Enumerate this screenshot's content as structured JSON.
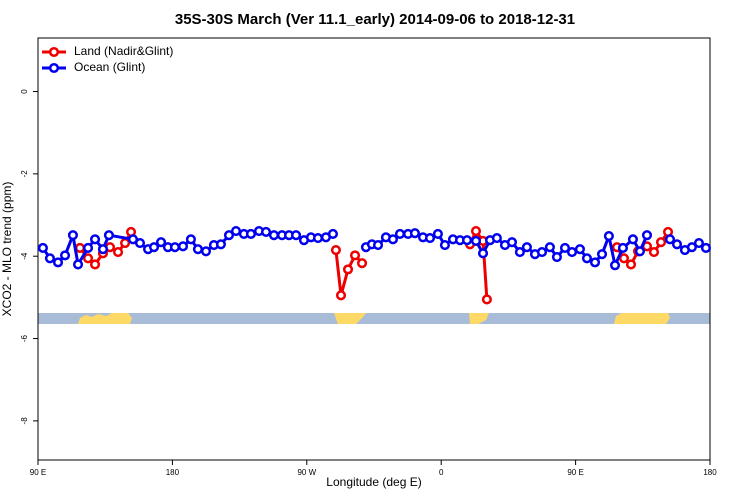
{
  "chart_data": {
    "type": "line",
    "title": "35S-30S March (Ver 11.1_early)   2014-09-06 to 2018-12-31",
    "x_label": "Longitude (deg E)",
    "y_label": "XCO2 - MLO trend (ppm)",
    "xlim": [
      90,
      540
    ],
    "ylim": [
      -8.95,
      1.3
    ],
    "xticks": [
      {
        "value": 90,
        "label": "90 E"
      },
      180,
      {
        "value": 270,
        "label": "90 W"
      },
      {
        "value": 360,
        "label": "0"
      },
      {
        "value": 450,
        "label": "90 E"
      },
      {
        "value": 540,
        "label": "180"
      }
    ],
    "yticks": [
      0,
      -2,
      -4,
      -6,
      -8
    ],
    "legend": "top-left",
    "series": [
      {
        "name": "Land (Nadir&Glint)",
        "color": "#ee0000",
        "x": [
          118.1,
          123.5,
          128.2,
          133.5,
          138.2,
          143.6,
          148.3,
          152.3,
          null,
          289.5,
          292.9,
          297.6,
          302.3,
          307.0,
          null,
          379.3,
          383.3,
          388.0,
          390.6,
          null,
          477.7,
          482.4,
          487.1,
          491.8,
          497.8,
          502.5,
          507.2,
          511.9
        ],
        "values": [
          -3.8,
          -4.05,
          -4.2,
          -3.93,
          -3.78,
          -3.9,
          -3.68,
          -3.41,
          null,
          -3.85,
          -4.95,
          -4.32,
          -3.98,
          -4.17,
          null,
          -3.71,
          -3.39,
          -3.63,
          -5.05,
          null,
          -3.78,
          -4.05,
          -4.2,
          -3.88,
          -3.76,
          -3.9,
          -3.66,
          -3.41
        ]
      },
      {
        "name": "Ocean (Glint)",
        "color": "#0000ee",
        "x": [
          93.3,
          98.0,
          103.4,
          108.1,
          113.4,
          116.8,
          123.5,
          128.2,
          133.5,
          137.5,
          153.6,
          158.3,
          163.7,
          167.7,
          172.4,
          177.0,
          181.7,
          187.1,
          192.4,
          197.1,
          202.5,
          207.8,
          212.5,
          217.9,
          222.6,
          227.9,
          232.6,
          238.0,
          242.7,
          248.0,
          253.4,
          258.1,
          262.8,
          268.1,
          272.8,
          277.5,
          282.8,
          287.5,
          null,
          309.6,
          313.6,
          317.7,
          323.0,
          327.7,
          332.4,
          337.8,
          342.4,
          347.8,
          352.5,
          357.8,
          362.5,
          367.9,
          372.6,
          377.3,
          383.3,
          388.0,
          392.7,
          397.3,
          402.7,
          407.4,
          412.7,
          417.4,
          422.8,
          427.5,
          432.8,
          437.5,
          442.9,
          447.6,
          452.9,
          457.6,
          463.0,
          467.7,
          472.3,
          476.4,
          481.7,
          488.4,
          493.1,
          497.8,
          null,
          513.2,
          517.9,
          523.2,
          527.9,
          532.6,
          537.3
        ],
        "values": [
          -3.8,
          -4.05,
          -4.15,
          -3.98,
          -3.49,
          -4.2,
          -3.8,
          -3.59,
          -3.83,
          -3.49,
          -3.59,
          -3.68,
          -3.83,
          -3.78,
          -3.66,
          -3.78,
          -3.78,
          -3.76,
          -3.59,
          -3.83,
          -3.88,
          -3.73,
          -3.71,
          -3.49,
          -3.39,
          -3.46,
          -3.46,
          -3.39,
          -3.41,
          -3.49,
          -3.49,
          -3.49,
          -3.49,
          -3.61,
          -3.54,
          -3.56,
          -3.54,
          -3.46,
          null,
          -3.78,
          -3.71,
          -3.73,
          -3.54,
          -3.59,
          -3.46,
          -3.46,
          -3.44,
          -3.54,
          -3.56,
          -3.46,
          -3.73,
          -3.59,
          -3.61,
          -3.61,
          -3.63,
          -3.93,
          -3.61,
          -3.56,
          -3.73,
          -3.66,
          -3.9,
          -3.78,
          -3.95,
          -3.9,
          -3.78,
          -4.02,
          -3.8,
          -3.9,
          -3.83,
          -4.05,
          -4.15,
          -3.95,
          -3.51,
          -4.22,
          -3.8,
          -3.59,
          -3.88,
          -3.49,
          null,
          -3.59,
          -3.71,
          -3.85,
          -3.78,
          -3.68,
          -3.8
        ]
      }
    ]
  }
}
